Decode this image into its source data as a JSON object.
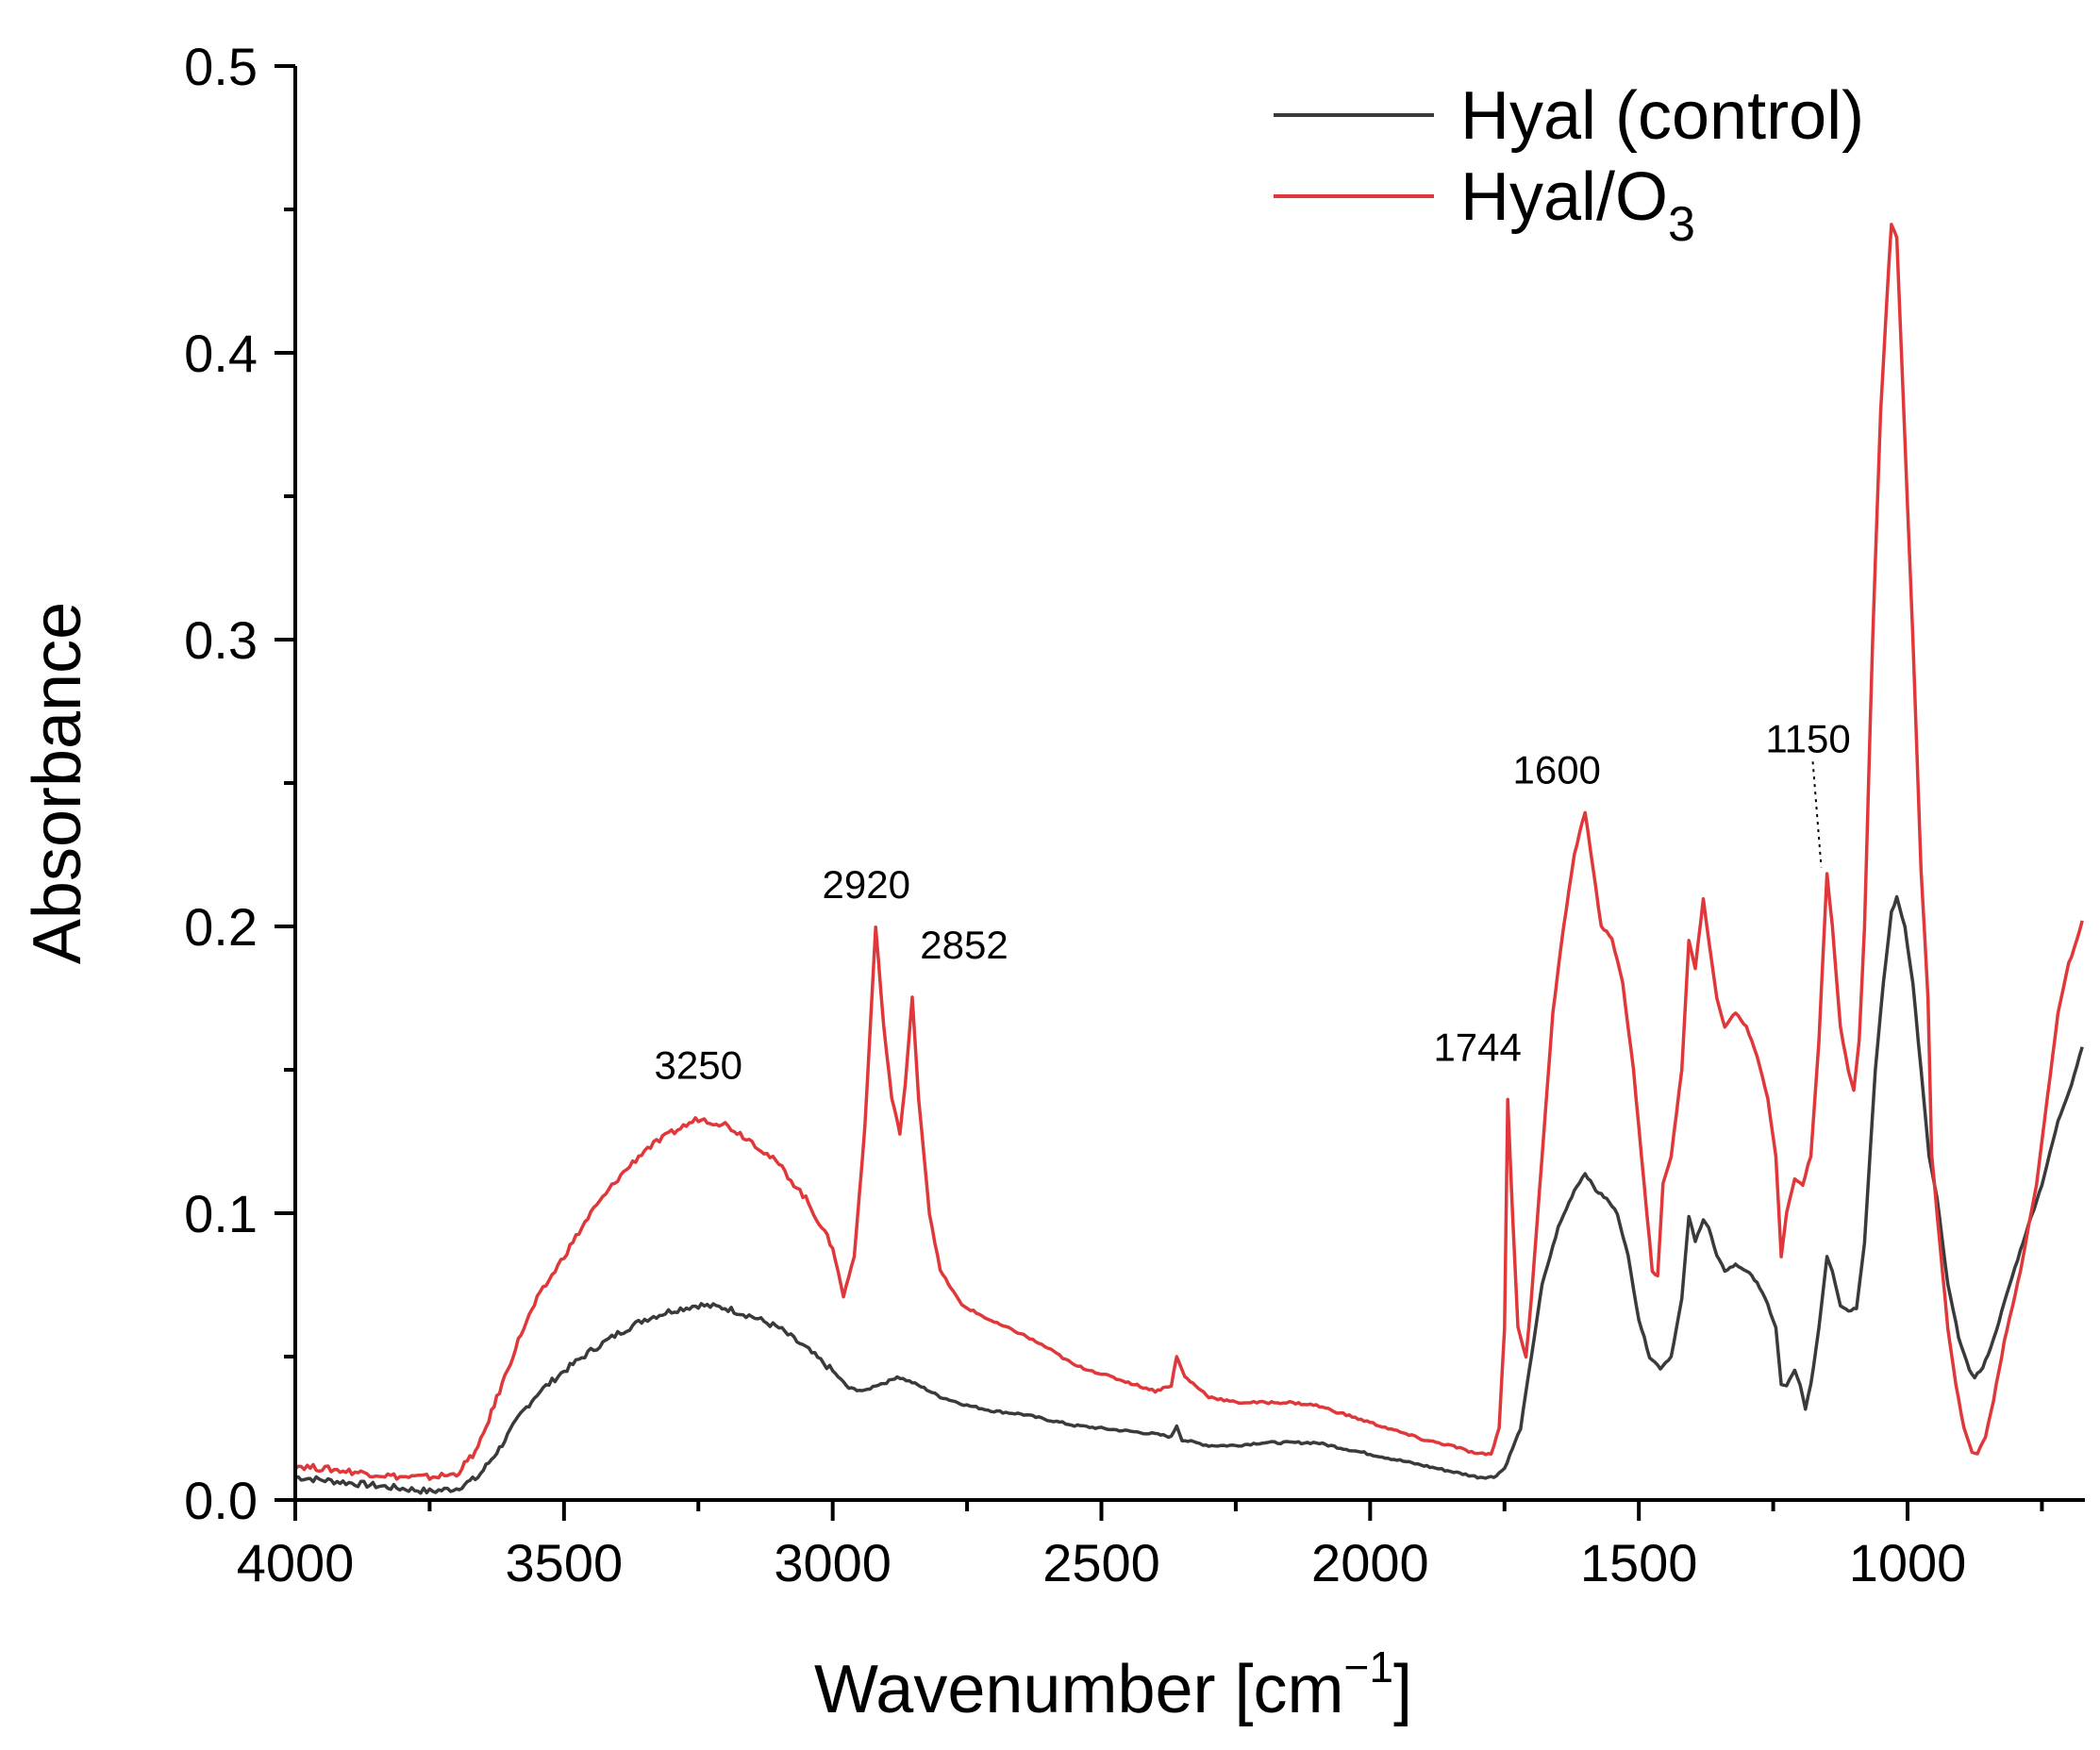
{
  "chart_data": {
    "type": "line",
    "title": "",
    "xlabel": "Wavenumber [cm",
    "xlabel_sup": "−1",
    "xlabel_close": "]",
    "ylabel": "Absorbance",
    "xlim": [
      4000,
      670
    ],
    "ylim": [
      0,
      0.5
    ],
    "x_ticks": [
      4000,
      3500,
      3000,
      2500,
      2000,
      1500,
      1000
    ],
    "x_tick_labels": [
      "4000",
      "3500",
      "3000",
      "2500",
      "2000",
      "1500",
      "1000"
    ],
    "y_ticks": [
      0,
      0.1,
      0.2,
      0.3,
      0.4,
      0.5
    ],
    "y_tick_labels": [
      "0.0",
      "0.1",
      "0.2",
      "0.3",
      "0.4",
      "0.5"
    ],
    "legend": {
      "position": "top-right",
      "entries": [
        {
          "label": "Hyal (control)",
          "color": "#3a3a3a"
        },
        {
          "label_main": "Hyal/O",
          "label_sub": "3",
          "color": "#e0383a"
        }
      ]
    },
    "series": [
      {
        "name": "Hyal (control)",
        "color": "#3a3a3a",
        "points": [
          [
            4000,
            0.008
          ],
          [
            3950,
            0.007
          ],
          [
            3900,
            0.006
          ],
          [
            3850,
            0.005
          ],
          [
            3800,
            0.004
          ],
          [
            3750,
            0.003
          ],
          [
            3700,
            0.004
          ],
          [
            3660,
            0.008
          ],
          [
            3620,
            0.018
          ],
          [
            3580,
            0.03
          ],
          [
            3550,
            0.037
          ],
          [
            3500,
            0.045
          ],
          [
            3450,
            0.052
          ],
          [
            3400,
            0.058
          ],
          [
            3350,
            0.063
          ],
          [
            3300,
            0.066
          ],
          [
            3250,
            0.068
          ],
          [
            3200,
            0.067
          ],
          [
            3150,
            0.064
          ],
          [
            3100,
            0.06
          ],
          [
            3050,
            0.053
          ],
          [
            3000,
            0.045
          ],
          [
            2970,
            0.039
          ],
          [
            2940,
            0.038
          ],
          [
            2920,
            0.04
          ],
          [
            2900,
            0.041
          ],
          [
            2880,
            0.043
          ],
          [
            2852,
            0.041
          ],
          [
            2830,
            0.039
          ],
          [
            2800,
            0.036
          ],
          [
            2750,
            0.033
          ],
          [
            2700,
            0.031
          ],
          [
            2650,
            0.03
          ],
          [
            2600,
            0.028
          ],
          [
            2550,
            0.026
          ],
          [
            2500,
            0.025
          ],
          [
            2450,
            0.024
          ],
          [
            2400,
            0.023
          ],
          [
            2370,
            0.022
          ],
          [
            2360,
            0.026
          ],
          [
            2350,
            0.021
          ],
          [
            2300,
            0.019
          ],
          [
            2250,
            0.019
          ],
          [
            2200,
            0.02
          ],
          [
            2150,
            0.02
          ],
          [
            2100,
            0.02
          ],
          [
            2050,
            0.018
          ],
          [
            2000,
            0.016
          ],
          [
            1950,
            0.014
          ],
          [
            1900,
            0.012
          ],
          [
            1850,
            0.01
          ],
          [
            1800,
            0.008
          ],
          [
            1770,
            0.008
          ],
          [
            1750,
            0.011
          ],
          [
            1720,
            0.025
          ],
          [
            1700,
            0.05
          ],
          [
            1680,
            0.075
          ],
          [
            1650,
            0.095
          ],
          [
            1620,
            0.108
          ],
          [
            1600,
            0.114
          ],
          [
            1580,
            0.108
          ],
          [
            1560,
            0.105
          ],
          [
            1540,
            0.1
          ],
          [
            1520,
            0.085
          ],
          [
            1500,
            0.063
          ],
          [
            1480,
            0.05
          ],
          [
            1460,
            0.046
          ],
          [
            1440,
            0.05
          ],
          [
            1420,
            0.07
          ],
          [
            1407,
            0.099
          ],
          [
            1395,
            0.09
          ],
          [
            1380,
            0.098
          ],
          [
            1370,
            0.095
          ],
          [
            1355,
            0.085
          ],
          [
            1340,
            0.08
          ],
          [
            1320,
            0.082
          ],
          [
            1300,
            0.08
          ],
          [
            1280,
            0.076
          ],
          [
            1260,
            0.068
          ],
          [
            1245,
            0.06
          ],
          [
            1235,
            0.04
          ],
          [
            1225,
            0.04
          ],
          [
            1210,
            0.045
          ],
          [
            1200,
            0.04
          ],
          [
            1190,
            0.032
          ],
          [
            1180,
            0.04
          ],
          [
            1165,
            0.06
          ],
          [
            1150,
            0.085
          ],
          [
            1140,
            0.08
          ],
          [
            1125,
            0.068
          ],
          [
            1110,
            0.066
          ],
          [
            1095,
            0.067
          ],
          [
            1080,
            0.09
          ],
          [
            1060,
            0.15
          ],
          [
            1045,
            0.18
          ],
          [
            1030,
            0.205
          ],
          [
            1020,
            0.21
          ],
          [
            1005,
            0.2
          ],
          [
            990,
            0.18
          ],
          [
            975,
            0.15
          ],
          [
            960,
            0.12
          ],
          [
            945,
            0.105
          ],
          [
            925,
            0.075
          ],
          [
            905,
            0.057
          ],
          [
            885,
            0.045
          ],
          [
            875,
            0.043
          ],
          [
            860,
            0.046
          ],
          [
            840,
            0.056
          ],
          [
            810,
            0.075
          ],
          [
            780,
            0.093
          ],
          [
            750,
            0.11
          ],
          [
            720,
            0.132
          ],
          [
            695,
            0.145
          ],
          [
            675,
            0.158
          ]
        ]
      },
      {
        "name": "Hyal/O3",
        "color": "#e0383a",
        "points": [
          [
            4000,
            0.012
          ],
          [
            3950,
            0.011
          ],
          [
            3900,
            0.01
          ],
          [
            3850,
            0.009
          ],
          [
            3800,
            0.008
          ],
          [
            3750,
            0.008
          ],
          [
            3700,
            0.009
          ],
          [
            3660,
            0.018
          ],
          [
            3620,
            0.038
          ],
          [
            3580,
            0.058
          ],
          [
            3550,
            0.07
          ],
          [
            3500,
            0.085
          ],
          [
            3450,
            0.1
          ],
          [
            3400,
            0.112
          ],
          [
            3350,
            0.122
          ],
          [
            3300,
            0.128
          ],
          [
            3250,
            0.133
          ],
          [
            3200,
            0.131
          ],
          [
            3150,
            0.125
          ],
          [
            3100,
            0.117
          ],
          [
            3050,
            0.105
          ],
          [
            3020,
            0.095
          ],
          [
            3000,
            0.088
          ],
          [
            2980,
            0.071
          ],
          [
            2960,
            0.085
          ],
          [
            2940,
            0.13
          ],
          [
            2920,
            0.2
          ],
          [
            2905,
            0.165
          ],
          [
            2890,
            0.14
          ],
          [
            2875,
            0.128
          ],
          [
            2865,
            0.145
          ],
          [
            2852,
            0.175
          ],
          [
            2840,
            0.14
          ],
          [
            2820,
            0.1
          ],
          [
            2800,
            0.08
          ],
          [
            2760,
            0.068
          ],
          [
            2700,
            0.062
          ],
          [
            2650,
            0.058
          ],
          [
            2600,
            0.053
          ],
          [
            2550,
            0.047
          ],
          [
            2500,
            0.044
          ],
          [
            2450,
            0.041
          ],
          [
            2400,
            0.038
          ],
          [
            2370,
            0.04
          ],
          [
            2360,
            0.05
          ],
          [
            2345,
            0.043
          ],
          [
            2300,
            0.036
          ],
          [
            2250,
            0.034
          ],
          [
            2200,
            0.034
          ],
          [
            2150,
            0.034
          ],
          [
            2100,
            0.033
          ],
          [
            2050,
            0.03
          ],
          [
            2000,
            0.027
          ],
          [
            1950,
            0.024
          ],
          [
            1900,
            0.021
          ],
          [
            1850,
            0.019
          ],
          [
            1800,
            0.016
          ],
          [
            1775,
            0.016
          ],
          [
            1760,
            0.025
          ],
          [
            1750,
            0.06
          ],
          [
            1744,
            0.14
          ],
          [
            1735,
            0.1
          ],
          [
            1725,
            0.06
          ],
          [
            1710,
            0.05
          ],
          [
            1700,
            0.07
          ],
          [
            1680,
            0.12
          ],
          [
            1660,
            0.17
          ],
          [
            1640,
            0.2
          ],
          [
            1620,
            0.225
          ],
          [
            1600,
            0.24
          ],
          [
            1585,
            0.22
          ],
          [
            1570,
            0.2
          ],
          [
            1550,
            0.196
          ],
          [
            1530,
            0.18
          ],
          [
            1510,
            0.15
          ],
          [
            1490,
            0.11
          ],
          [
            1475,
            0.08
          ],
          [
            1465,
            0.078
          ],
          [
            1455,
            0.11
          ],
          [
            1440,
            0.12
          ],
          [
            1420,
            0.15
          ],
          [
            1407,
            0.195
          ],
          [
            1395,
            0.185
          ],
          [
            1380,
            0.21
          ],
          [
            1370,
            0.195
          ],
          [
            1355,
            0.175
          ],
          [
            1340,
            0.165
          ],
          [
            1320,
            0.17
          ],
          [
            1300,
            0.165
          ],
          [
            1280,
            0.155
          ],
          [
            1260,
            0.14
          ],
          [
            1245,
            0.12
          ],
          [
            1235,
            0.085
          ],
          [
            1225,
            0.1
          ],
          [
            1210,
            0.112
          ],
          [
            1195,
            0.11
          ],
          [
            1180,
            0.12
          ],
          [
            1165,
            0.16
          ],
          [
            1150,
            0.218
          ],
          [
            1140,
            0.2
          ],
          [
            1125,
            0.165
          ],
          [
            1110,
            0.15
          ],
          [
            1100,
            0.143
          ],
          [
            1090,
            0.16
          ],
          [
            1080,
            0.2
          ],
          [
            1065,
            0.3
          ],
          [
            1050,
            0.38
          ],
          [
            1035,
            0.43
          ],
          [
            1030,
            0.445
          ],
          [
            1020,
            0.44
          ],
          [
            1005,
            0.37
          ],
          [
            990,
            0.3
          ],
          [
            975,
            0.22
          ],
          [
            962,
            0.175
          ],
          [
            955,
            0.12
          ],
          [
            940,
            0.09
          ],
          [
            925,
            0.06
          ],
          [
            910,
            0.04
          ],
          [
            895,
            0.025
          ],
          [
            880,
            0.017
          ],
          [
            870,
            0.016
          ],
          [
            855,
            0.022
          ],
          [
            840,
            0.035
          ],
          [
            820,
            0.055
          ],
          [
            790,
            0.08
          ],
          [
            760,
            0.11
          ],
          [
            740,
            0.14
          ],
          [
            720,
            0.17
          ],
          [
            700,
            0.187
          ],
          [
            685,
            0.195
          ],
          [
            675,
            0.202
          ]
        ]
      }
    ],
    "annotations": [
      {
        "text": "3250",
        "x": 3250,
        "y": 0.133
      },
      {
        "text": "2920",
        "x": 2920,
        "y": 0.2
      },
      {
        "text": "2852",
        "x": 2852,
        "y": 0.175
      },
      {
        "text": "1744",
        "x": 1744,
        "y": 0.14
      },
      {
        "text": "1600",
        "x": 1600,
        "y": 0.24
      },
      {
        "text": "1150",
        "x": 1150,
        "y": 0.218
      }
    ]
  }
}
